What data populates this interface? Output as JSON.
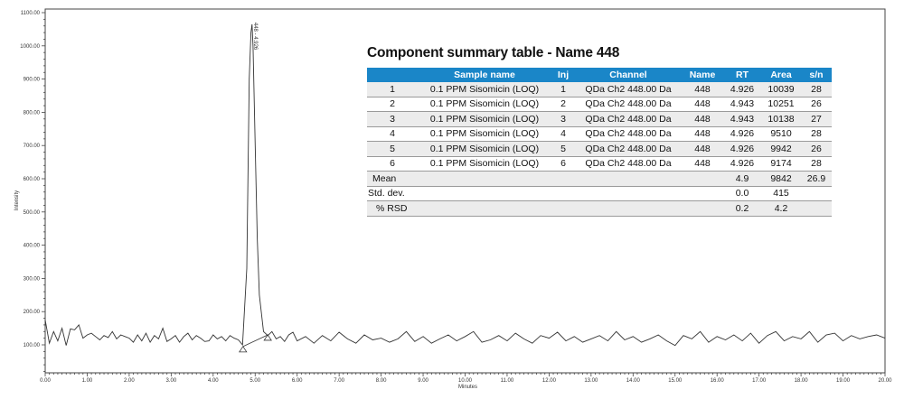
{
  "chart_data": {
    "type": "line",
    "title": "",
    "xlabel": "Minutes",
    "ylabel": "Intensity",
    "xlim": [
      0,
      20
    ],
    "ylim": [
      17,
      1100
    ],
    "x_ticks": [
      "0.00",
      "1.00",
      "2.00",
      "3.00",
      "4.00",
      "5.00",
      "6.00",
      "7.00",
      "8.00",
      "9.00",
      "10.00",
      "11.00",
      "12.00",
      "13.00",
      "14.00",
      "15.00",
      "16.00",
      "17.00",
      "18.00",
      "19.00",
      "20.00"
    ],
    "y_ticks": [
      "100.00",
      "200.00",
      "300.00",
      "400.00",
      "500.00",
      "600.00",
      "700.00",
      "800.00",
      "900.00",
      "1000.00",
      "1100.00"
    ],
    "grid": false,
    "peak": {
      "rt": 4.926,
      "apex_intensity": 1065,
      "label": "448 - 4.926",
      "start_rt": 4.71,
      "end_rt": 5.3,
      "start_intensity": 95,
      "end_intensity": 130
    },
    "series": [
      {
        "name": "QDa Ch2 448.00 Da",
        "x": [
          0.0,
          0.1,
          0.2,
          0.3,
          0.4,
          0.5,
          0.6,
          0.7,
          0.8,
          0.9,
          1.0,
          1.1,
          1.2,
          1.3,
          1.4,
          1.5,
          1.6,
          1.7,
          1.8,
          1.9,
          2.0,
          2.1,
          2.2,
          2.3,
          2.4,
          2.5,
          2.6,
          2.7,
          2.8,
          2.9,
          3.0,
          3.1,
          3.2,
          3.3,
          3.4,
          3.5,
          3.6,
          3.7,
          3.8,
          3.9,
          4.0,
          4.1,
          4.2,
          4.3,
          4.4,
          4.5,
          4.6,
          4.7,
          4.8,
          4.86,
          4.9,
          4.926,
          4.95,
          5.0,
          5.05,
          5.1,
          5.2,
          5.3,
          5.4,
          5.5,
          5.6,
          5.7,
          5.8,
          5.9,
          6.0,
          6.2,
          6.4,
          6.6,
          6.8,
          7.0,
          7.2,
          7.4,
          7.6,
          7.8,
          8.0,
          8.2,
          8.4,
          8.6,
          8.8,
          9.0,
          9.2,
          9.4,
          9.6,
          9.8,
          10.0,
          10.2,
          10.4,
          10.6,
          10.8,
          11.0,
          11.2,
          11.4,
          11.6,
          11.8,
          12.0,
          12.2,
          12.4,
          12.6,
          12.8,
          13.0,
          13.2,
          13.4,
          13.6,
          13.8,
          14.0,
          14.2,
          14.4,
          14.6,
          14.8,
          15.0,
          15.2,
          15.4,
          15.6,
          15.8,
          16.0,
          16.2,
          16.4,
          16.6,
          16.8,
          17.0,
          17.2,
          17.4,
          17.6,
          17.8,
          18.0,
          18.2,
          18.4,
          18.6,
          18.8,
          19.0,
          19.2,
          19.4,
          19.6,
          19.8,
          20.0
        ],
        "y": [
          175,
          105,
          140,
          112,
          150,
          98,
          148,
          145,
          160,
          120,
          130,
          135,
          125,
          115,
          128,
          122,
          140,
          118,
          130,
          125,
          120,
          108,
          130,
          112,
          135,
          108,
          128,
          118,
          150,
          110,
          118,
          128,
          108,
          125,
          135,
          115,
          128,
          120,
          110,
          112,
          130,
          118,
          125,
          112,
          128,
          120,
          115,
          100,
          330,
          900,
          1040,
          1065,
          1000,
          700,
          420,
          250,
          140,
          128,
          140,
          118,
          125,
          110,
          130,
          138,
          112,
          125,
          105,
          128,
          112,
          138,
          118,
          105,
          130,
          115,
          120,
          108,
          118,
          140,
          110,
          125,
          105,
          118,
          130,
          112,
          125,
          140,
          108,
          115,
          128,
          112,
          135,
          118,
          105,
          128,
          120,
          138,
          112,
          125,
          108,
          118,
          128,
          112,
          140,
          115,
          125,
          108,
          118,
          130,
          112,
          98,
          128,
          118,
          140,
          108,
          125,
          115,
          130,
          112,
          135,
          105,
          128,
          140,
          112,
          125,
          118,
          140,
          108,
          130,
          135,
          112,
          128,
          118,
          125,
          130,
          120
        ],
        "color": "#333333"
      }
    ]
  },
  "summary_table": {
    "title": "Component summary table - Name 448",
    "header_color": "#1a86c8",
    "columns": [
      "",
      "Sample name",
      "Inj",
      "Channel",
      "Name",
      "RT",
      "Area",
      "s/n"
    ],
    "rows": [
      [
        "1",
        "0.1 PPM Sisomicin (LOQ)",
        "1",
        "QDa Ch2 448.00 Da",
        "448",
        "4.926",
        "10039",
        "28"
      ],
      [
        "2",
        "0.1 PPM Sisomicin (LOQ)",
        "2",
        "QDa Ch2 448.00 Da",
        "448",
        "4.943",
        "10251",
        "26"
      ],
      [
        "3",
        "0.1 PPM Sisomicin (LOQ)",
        "3",
        "QDa Ch2 448.00 Da",
        "448",
        "4.943",
        "10138",
        "27"
      ],
      [
        "4",
        "0.1 PPM Sisomicin (LOQ)",
        "4",
        "QDa Ch2 448.00 Da",
        "448",
        "4.926",
        "9510",
        "28"
      ],
      [
        "5",
        "0.1 PPM Sisomicin (LOQ)",
        "5",
        "QDa Ch2 448.00 Da",
        "448",
        "4.926",
        "9942",
        "26"
      ],
      [
        "6",
        "0.1 PPM Sisomicin (LOQ)",
        "6",
        "QDa Ch2 448.00 Da",
        "448",
        "4.926",
        "9174",
        "28"
      ]
    ],
    "stats": [
      {
        "label": "Mean",
        "rt": "4.9",
        "area": "9842",
        "sn": "26.9"
      },
      {
        "label": "Std. dev.",
        "rt": "0.0",
        "area": "415",
        "sn": ""
      },
      {
        "label": "% RSD",
        "rt": "0.2",
        "area": "4.2",
        "sn": ""
      }
    ]
  }
}
